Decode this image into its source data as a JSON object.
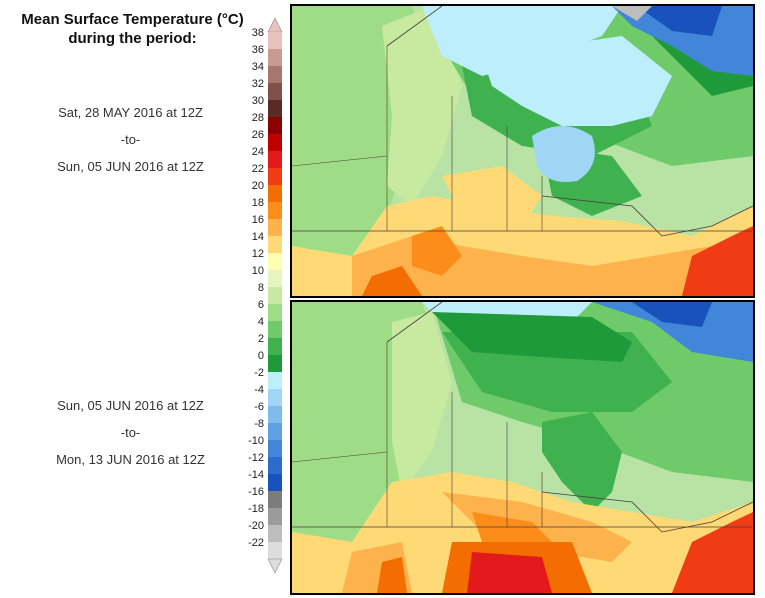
{
  "header": {
    "title_line1": "Mean Surface Temperature (°C)",
    "title_line2": "during the period:"
  },
  "periods": [
    {
      "start": "Sat, 28 MAY 2016 at 12Z",
      "sep": "-to-",
      "end": "Sun, 05 JUN 2016 at 12Z"
    },
    {
      "start": "Sun, 05 JUN 2016 at 12Z",
      "sep": "-to-",
      "end": "Mon, 13 JUN 2016 at 12Z"
    }
  ],
  "legend": {
    "labels": [
      "38",
      "36",
      "34",
      "32",
      "30",
      "28",
      "26",
      "24",
      "22",
      "20",
      "18",
      "16",
      "14",
      "12",
      "10",
      "8",
      "6",
      "4",
      "2",
      "0",
      "-2",
      "-4",
      "-6",
      "-8",
      "-10",
      "-12",
      "-14",
      "-16",
      "-18",
      "-20",
      "-22"
    ],
    "colors": [
      "#e8c3bd",
      "#c99a92",
      "#a8766e",
      "#80514a",
      "#5c2a25",
      "#8b0000",
      "#c00000",
      "#e31a1c",
      "#f03c14",
      "#f46d00",
      "#fd8d1a",
      "#feb24c",
      "#fed976",
      "#ffffb2",
      "#e5f5c0",
      "#c7eaa0",
      "#9fdc86",
      "#6fcb6a",
      "#3fb24f",
      "#1f9a3a",
      "#bdeefc",
      "#9fd6f5",
      "#7fbcec",
      "#5fa1e3",
      "#4186d8",
      "#2c6ccc",
      "#1a52bd",
      "#7c7c7c",
      "#9b9b9b",
      "#bdbdbd",
      "#dddddd"
    ]
  },
  "maps": [
    {
      "name": "map-week1"
    },
    {
      "name": "map-week2"
    }
  ]
}
